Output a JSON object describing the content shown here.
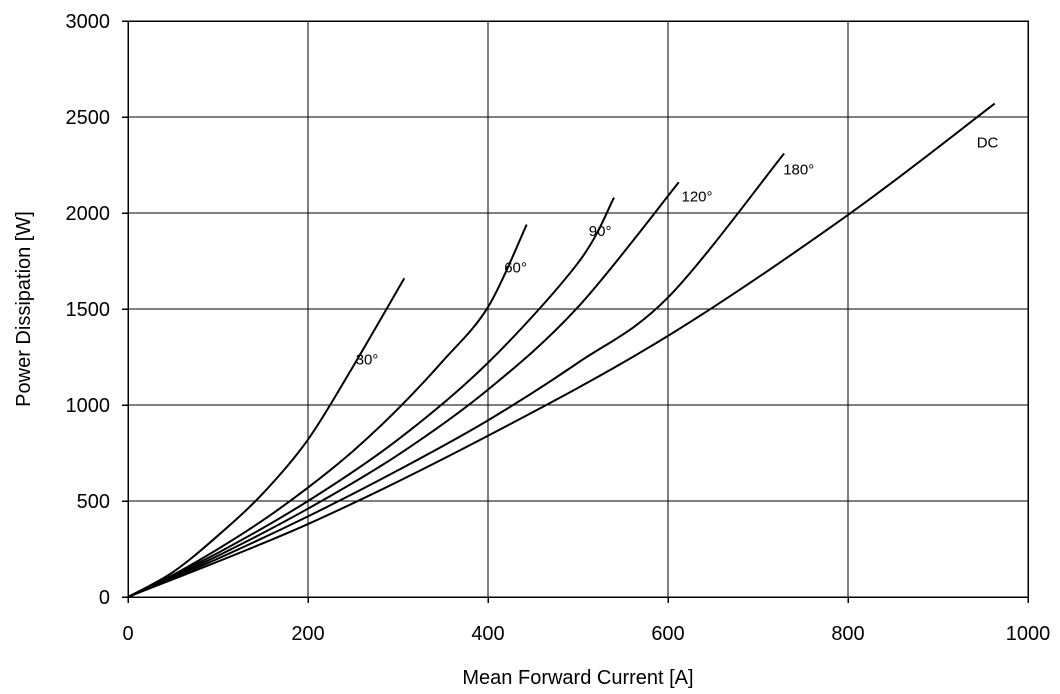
{
  "chart_data": {
    "type": "line",
    "xlabel": "Mean Forward Current [A]",
    "ylabel": "Power Dissipation [W]",
    "xlim": [
      0,
      1000
    ],
    "ylim": [
      0,
      3000
    ],
    "xticks": [
      0,
      200,
      400,
      600,
      800,
      1000
    ],
    "yticks": [
      0,
      500,
      1000,
      1500,
      2000,
      2500,
      3000
    ],
    "grid": true,
    "series": [
      {
        "name": "30°",
        "x": [
          0,
          50,
          100,
          150,
          200,
          250,
          307
        ],
        "y": [
          0,
          130,
          320,
          540,
          820,
          1200,
          1660
        ]
      },
      {
        "name": "60°",
        "x": [
          0,
          50,
          100,
          150,
          200,
          250,
          300,
          350,
          400,
          443
        ],
        "y": [
          0,
          115,
          250,
          400,
          570,
          760,
          980,
          1230,
          1510,
          1940
        ]
      },
      {
        "name": "90°",
        "x": [
          0,
          100,
          200,
          300,
          400,
          500,
          540
        ],
        "y": [
          0,
          230,
          500,
          820,
          1220,
          1740,
          2080
        ]
      },
      {
        "name": "120°",
        "x": [
          0,
          100,
          200,
          300,
          400,
          500,
          612
        ],
        "y": [
          0,
          215,
          460,
          740,
          1080,
          1510,
          2160
        ]
      },
      {
        "name": "180°",
        "x": [
          0,
          100,
          200,
          300,
          400,
          500,
          600,
          729
        ],
        "y": [
          0,
          200,
          420,
          660,
          920,
          1220,
          1560,
          2310
        ]
      },
      {
        "name": "DC",
        "x": [
          0,
          200,
          400,
          600,
          800,
          963
        ],
        "y": [
          0,
          380,
          840,
          1360,
          1990,
          2570
        ]
      }
    ],
    "labels": [
      {
        "text": "30°",
        "x": 253,
        "y": 1210
      },
      {
        "text": "60°",
        "x": 418,
        "y": 1690
      },
      {
        "text": "90°",
        "x": 512,
        "y": 1880
      },
      {
        "text": "120°",
        "x": 615,
        "y": 2060
      },
      {
        "text": "180°",
        "x": 728,
        "y": 2200
      },
      {
        "text": "DC",
        "x": 943,
        "y": 2340
      }
    ]
  }
}
